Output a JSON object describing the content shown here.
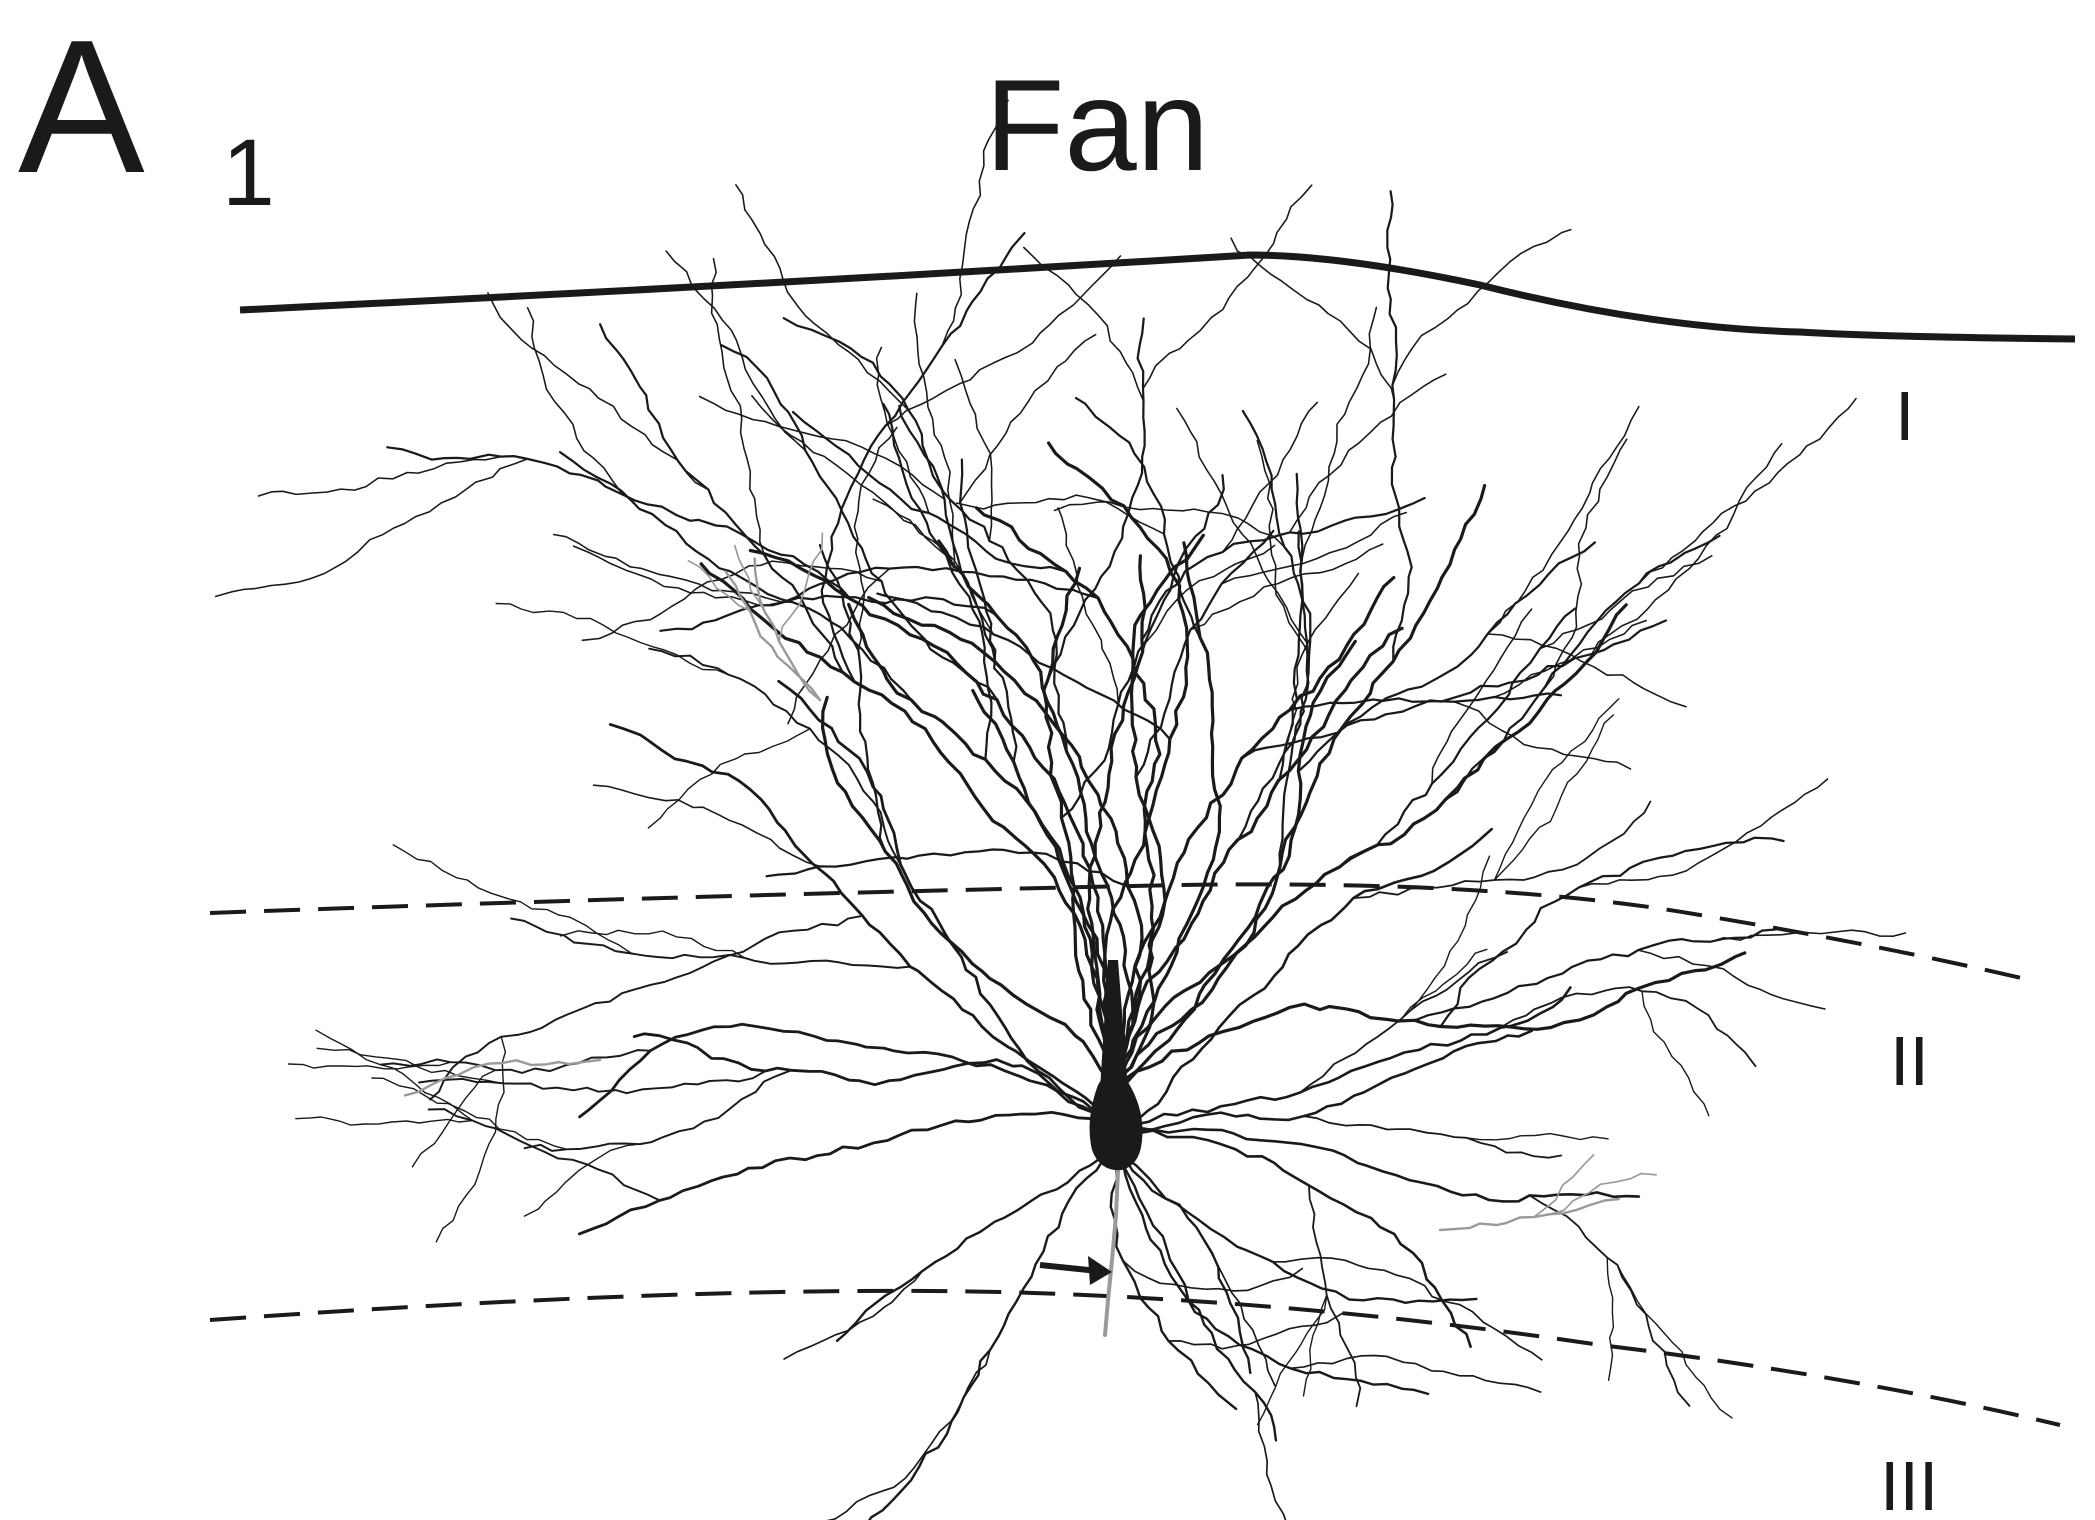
{
  "panel_label": "A",
  "panel_sublabel": "1",
  "title": "Fan",
  "layers": [
    "I",
    "II",
    "III"
  ],
  "colors": {
    "ink": "#1a1a1a",
    "axon": "#9a9a9a",
    "background": "#ffffff"
  },
  "icons": {
    "pointer": "arrow-right-icon"
  }
}
